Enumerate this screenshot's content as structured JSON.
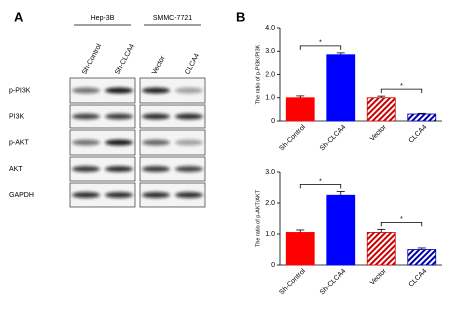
{
  "panel_a": {
    "label": "A",
    "groups": [
      "Hep-3B",
      "SMMC-7721"
    ],
    "lanes": [
      "Sh-Control",
      "Sh-CLCA4",
      "Vector",
      "CLCA4"
    ],
    "rows": [
      "p-PI3K",
      "PI3K",
      "p-AKT",
      "AKT",
      "GAPDH"
    ]
  },
  "panel_b_label": "B",
  "chart_data": [
    {
      "type": "bar",
      "ylabel": "The ratio of p-PI3K/PI3K",
      "categories": [
        "Sh-Control",
        "Sh-CLCA4",
        "Vector",
        "CLCA4"
      ],
      "values": [
        1.0,
        2.85,
        1.0,
        0.3
      ],
      "errors": [
        0.08,
        0.08,
        0.07,
        0.03
      ],
      "colors": [
        "#ff0000",
        "#0000ff",
        "#cc0000",
        "#0000aa"
      ],
      "hatch": [
        false,
        false,
        true,
        true
      ],
      "ylim": [
        0,
        4
      ],
      "yticks": [
        0,
        {
          "value": 1,
          "label": "1.0"
        },
        {
          "value": 2,
          "label": "2.0"
        },
        {
          "value": 3,
          "label": "3.0"
        },
        {
          "value": 4,
          "label": "4.0"
        }
      ],
      "annotations": [
        {
          "text": "*",
          "between": [
            "Sh-Control",
            "Sh-CLCA4"
          ]
        },
        {
          "text": "*",
          "between": [
            "Vector",
            "CLCA4"
          ]
        }
      ]
    },
    {
      "type": "bar",
      "ylabel": "The ratio of p-AKT/AKT",
      "categories": [
        "Sh-Control",
        "Sh-CLCA4",
        "Vector",
        "CLCA4"
      ],
      "values": [
        1.05,
        2.25,
        1.05,
        0.5
      ],
      "errors": [
        0.08,
        0.12,
        0.1,
        0.05
      ],
      "colors": [
        "#ff0000",
        "#0000ff",
        "#cc0000",
        "#0000aa"
      ],
      "hatch": [
        false,
        false,
        true,
        true
      ],
      "ylim": [
        0,
        3
      ],
      "yticks": [
        0,
        {
          "value": 1,
          "label": "1.0"
        },
        {
          "value": 2,
          "label": "2.0"
        },
        {
          "value": 3,
          "label": "3.0"
        }
      ],
      "annotations": [
        {
          "text": "*",
          "between": [
            "Sh-Control",
            "Sh-CLCA4"
          ]
        },
        {
          "text": "*",
          "between": [
            "Vector",
            "CLCA4"
          ]
        }
      ]
    }
  ]
}
